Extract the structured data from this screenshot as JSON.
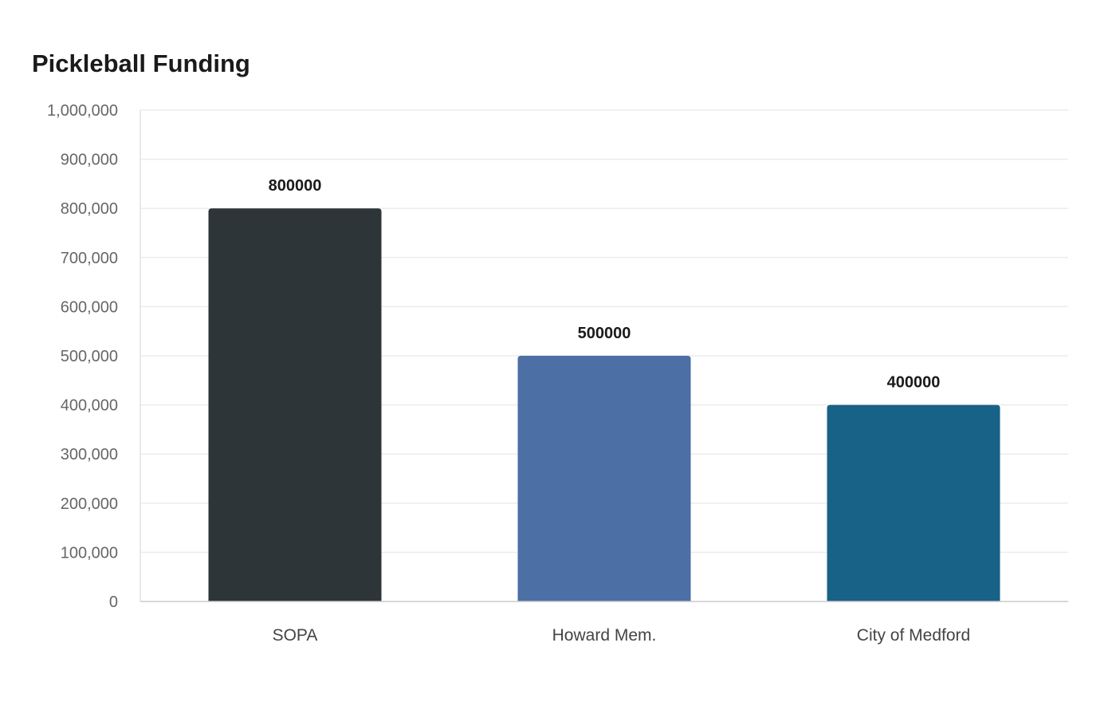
{
  "chart_data": {
    "type": "bar",
    "title": "Pickleball Funding",
    "xlabel": "",
    "ylabel": "",
    "categories": [
      "SOPA",
      "Howard Mem.",
      "City of Medford"
    ],
    "values": [
      800000,
      500000,
      400000
    ],
    "value_labels": [
      "800000",
      "500000",
      "400000"
    ],
    "bar_colors": [
      "#2e3538",
      "#4c6fa5",
      "#186187"
    ],
    "ylim": [
      0,
      1000000
    ],
    "yticks": [
      0,
      100000,
      200000,
      300000,
      400000,
      500000,
      600000,
      700000,
      800000,
      900000,
      1000000
    ],
    "ytick_labels": [
      "0",
      "100,000",
      "200,000",
      "300,000",
      "400,000",
      "500,000",
      "600,000",
      "700,000",
      "800,000",
      "900,000",
      "1,000,000"
    ],
    "grid": true,
    "legend": "none"
  }
}
